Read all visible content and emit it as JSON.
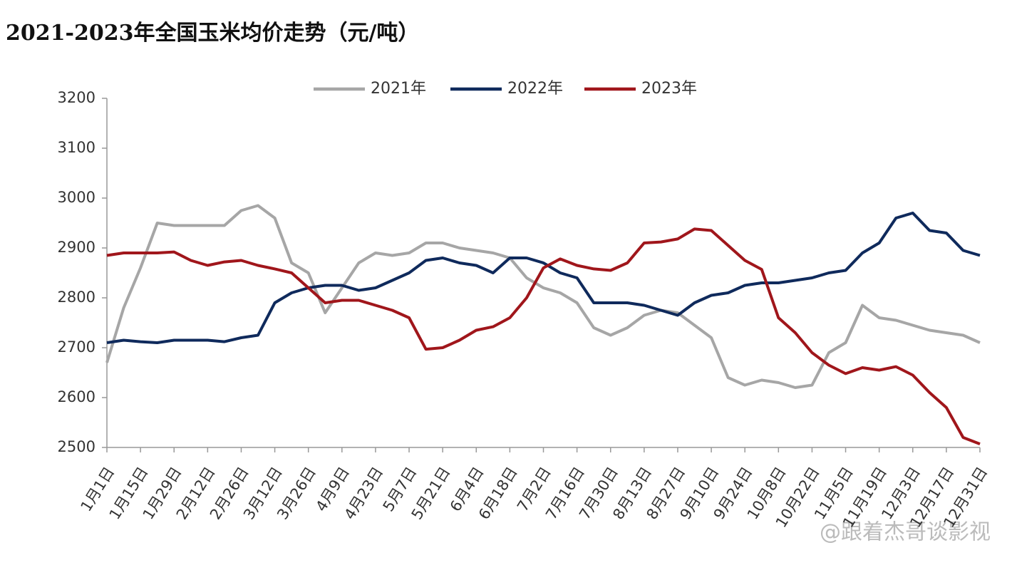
{
  "chart_data": {
    "type": "line",
    "title": "2021-2023年全国玉米均价走势（元/吨）",
    "watermark": "@跟着杰哥谈影视",
    "x": [
      0,
      7,
      14,
      21,
      28,
      35,
      42,
      49,
      56,
      63,
      70,
      77,
      84,
      91,
      98,
      105,
      112,
      119,
      126,
      133,
      140,
      147,
      154,
      161,
      168,
      175,
      182,
      189,
      196,
      203,
      210,
      217,
      224,
      231,
      238,
      245,
      252,
      259,
      266,
      273,
      280,
      287,
      294,
      301,
      308,
      315,
      322,
      329,
      336,
      343,
      350,
      357,
      364
    ],
    "xlim": [
      0,
      364
    ],
    "xticks": [
      {
        "value": 0,
        "label": "1月1日"
      },
      {
        "value": 14,
        "label": "1月15日"
      },
      {
        "value": 28,
        "label": "1月29日"
      },
      {
        "value": 42,
        "label": "2月12日"
      },
      {
        "value": 56,
        "label": "2月26日"
      },
      {
        "value": 70,
        "label": "3月12日"
      },
      {
        "value": 84,
        "label": "3月26日"
      },
      {
        "value": 98,
        "label": "4月9日"
      },
      {
        "value": 112,
        "label": "4月23日"
      },
      {
        "value": 126,
        "label": "5月7日"
      },
      {
        "value": 140,
        "label": "5月21日"
      },
      {
        "value": 154,
        "label": "6月4日"
      },
      {
        "value": 168,
        "label": "6月18日"
      },
      {
        "value": 182,
        "label": "7月2日"
      },
      {
        "value": 196,
        "label": "7月16日"
      },
      {
        "value": 210,
        "label": "7月30日"
      },
      {
        "value": 224,
        "label": "8月13日"
      },
      {
        "value": 238,
        "label": "8月27日"
      },
      {
        "value": 252,
        "label": "9月10日"
      },
      {
        "value": 266,
        "label": "9月24日"
      },
      {
        "value": 280,
        "label": "10月8日"
      },
      {
        "value": 294,
        "label": "10月22日"
      },
      {
        "value": 308,
        "label": "11月5日"
      },
      {
        "value": 322,
        "label": "11月19日"
      },
      {
        "value": 336,
        "label": "12月3日"
      },
      {
        "value": 350,
        "label": "12月17日"
      },
      {
        "value": 364,
        "label": "12月31日"
      }
    ],
    "ylim": [
      2500,
      3200
    ],
    "yticks": [
      2500,
      2600,
      2700,
      2800,
      2900,
      3000,
      3100,
      3200
    ],
    "legend": "top",
    "series": [
      {
        "name": "2021年",
        "color": "#a6a6a6",
        "values": [
          2670,
          2780,
          2860,
          2950,
          2945,
          2945,
          2945,
          2945,
          2975,
          2985,
          2960,
          2870,
          2850,
          2770,
          2820,
          2870,
          2890,
          2885,
          2890,
          2910,
          2910,
          2900,
          2895,
          2890,
          2880,
          2840,
          2820,
          2810,
          2790,
          2740,
          2725,
          2740,
          2765,
          2775,
          2770,
          2745,
          2720,
          2640,
          2625,
          2635,
          2630,
          2620,
          2625,
          2690,
          2710,
          2785,
          2760,
          2755,
          2745,
          2735,
          2730,
          2725,
          2710
        ]
      },
      {
        "name": "2022年",
        "color": "#0f2a5c",
        "values": [
          2710,
          2715,
          2712,
          2710,
          2715,
          2715,
          2715,
          2712,
          2720,
          2725,
          2790,
          2810,
          2820,
          2825,
          2825,
          2815,
          2820,
          2835,
          2850,
          2875,
          2880,
          2870,
          2865,
          2850,
          2880,
          2880,
          2870,
          2850,
          2840,
          2790,
          2790,
          2790,
          2785,
          2775,
          2765,
          2790,
          2805,
          2810,
          2825,
          2830,
          2830,
          2835,
          2840,
          2850,
          2855,
          2890,
          2910,
          2960,
          2970,
          2935,
          2930,
          2895,
          2885
        ]
      },
      {
        "name": "2023年",
        "color": "#a0161b",
        "values": [
          2885,
          2890,
          2890,
          2890,
          2892,
          2875,
          2865,
          2872,
          2875,
          2865,
          2858,
          2850,
          2820,
          2790,
          2795,
          2795,
          2785,
          2775,
          2760,
          2697,
          2700,
          2715,
          2735,
          2742,
          2760,
          2800,
          2860,
          2878,
          2865,
          2858,
          2855,
          2870,
          2910,
          2912,
          2918,
          2938,
          2935,
          2905,
          2875,
          2857,
          2760,
          2730,
          2690,
          2665,
          2648,
          2660,
          2655,
          2662,
          2645,
          2610,
          2580,
          2520,
          2507
        ]
      }
    ]
  }
}
